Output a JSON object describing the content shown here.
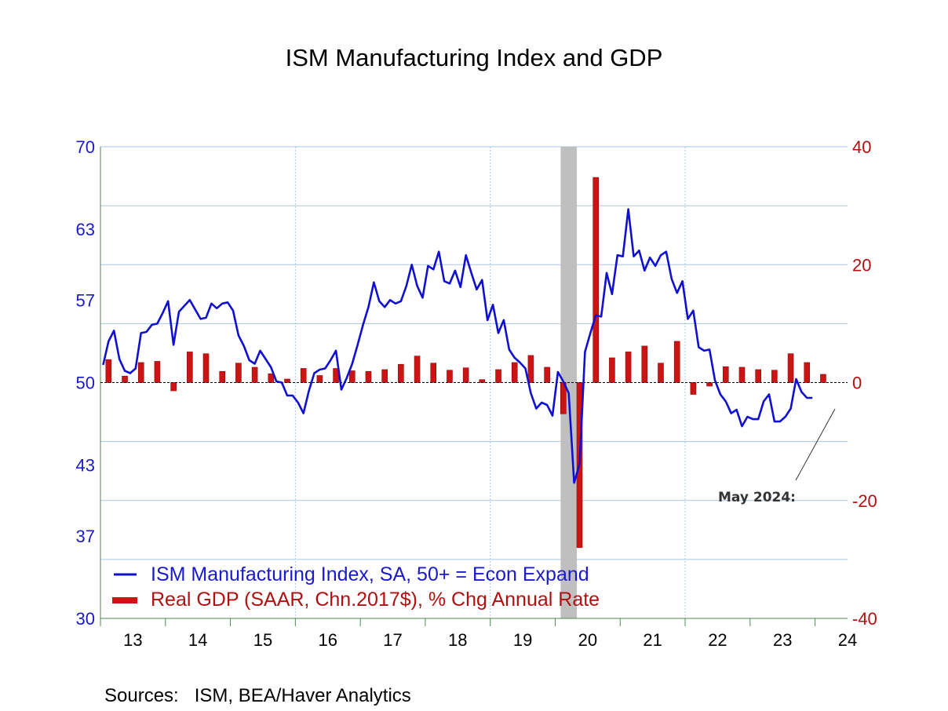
{
  "chart_data": {
    "type": "line",
    "title": "ISM Manufacturing Index and GDP",
    "source_note": "Sources:   ISM, BEA/Haver Analytics",
    "annotation": "May 2024:",
    "colors": {
      "ism": "#1010d0",
      "gdp": "#cc1414",
      "left_axis": "#1a1acc",
      "right_axis": "#b01010",
      "recession": "#bfbfbf",
      "grid": "#a9c6e3"
    },
    "left_axis": {
      "ylim": [
        30,
        70
      ],
      "ticks": [
        "30",
        "37",
        "43",
        "50",
        "57",
        "63",
        "70"
      ]
    },
    "right_axis": {
      "ylim": [
        -40,
        40
      ],
      "ticks": [
        "-40",
        "-20",
        "0",
        "20",
        "40"
      ]
    },
    "x_axis": {
      "start_year": 2013,
      "end_year": 2024,
      "tick_labels": [
        "13",
        "14",
        "15",
        "16",
        "17",
        "18",
        "19",
        "20",
        "21",
        "22",
        "23",
        "24"
      ]
    },
    "recession_shading": {
      "start": "2020-02",
      "end": "2020-04"
    },
    "series": [
      {
        "name": "ISM Manufacturing Index, SA, 50+ = Econ Expand",
        "kind": "line",
        "axis": "left",
        "start": "2013-01",
        "values": [
          51.5,
          53.5,
          54.4,
          52.0,
          51.0,
          50.8,
          51.2,
          54.2,
          54.3,
          54.9,
          55.0,
          55.9,
          56.9,
          53.2,
          56.0,
          56.5,
          57.0,
          56.2,
          55.4,
          55.5,
          56.7,
          56.3,
          56.7,
          56.8,
          56.1,
          54.0,
          53.1,
          51.9,
          51.6,
          52.7,
          52.0,
          51.3,
          50.1,
          50.0,
          48.9,
          48.9,
          48.3,
          47.4,
          49.3,
          50.8,
          51.1,
          51.2,
          51.9,
          52.7,
          49.4,
          50.4,
          51.6,
          53.2,
          54.9,
          56.4,
          58.5,
          56.9,
          56.4,
          57.0,
          56.7,
          56.9,
          58.2,
          60.0,
          58.2,
          57.2,
          59.9,
          59.6,
          61.1,
          58.6,
          58.4,
          59.5,
          58.1,
          60.8,
          59.3,
          57.9,
          58.7,
          55.3,
          56.6,
          54.2,
          55.3,
          52.8,
          52.1,
          51.7,
          51.2,
          49.1,
          47.8,
          48.3,
          48.1,
          47.2,
          50.9,
          50.1,
          49.1,
          41.5,
          43.1,
          52.6,
          54.2,
          55.7,
          55.6,
          59.3,
          57.5,
          60.8,
          60.7,
          64.7,
          60.7,
          61.2,
          59.5,
          60.6,
          59.9,
          60.8,
          61.1,
          58.8,
          57.6,
          58.6,
          55.4,
          56.1,
          53.0,
          52.7,
          52.8,
          50.2,
          49.0,
          48.4,
          47.4,
          47.7,
          46.3,
          47.1,
          46.9,
          46.9,
          48.4,
          49.0,
          46.7,
          46.7,
          47.1,
          47.8,
          50.3,
          49.2,
          48.7,
          48.7
        ]
      },
      {
        "name": "Real GDP (SAAR, Chn.2017$), % Chg Annual Rate",
        "kind": "bar",
        "axis": "right",
        "start": "2013-Q1",
        "values": [
          3.9,
          1.1,
          3.4,
          3.6,
          -1.4,
          5.2,
          4.9,
          1.9,
          3.3,
          2.6,
          1.5,
          0.6,
          2.4,
          1.2,
          2.4,
          2.0,
          1.9,
          2.2,
          3.1,
          4.5,
          3.3,
          2.1,
          2.5,
          0.5,
          2.2,
          3.4,
          4.6,
          2.6,
          -5.3,
          -28.0,
          34.8,
          4.2,
          5.2,
          6.2,
          3.3,
          7.0,
          -2.0,
          -0.6,
          2.7,
          2.6,
          2.2,
          2.1,
          4.9,
          3.4,
          1.4
        ]
      }
    ]
  }
}
